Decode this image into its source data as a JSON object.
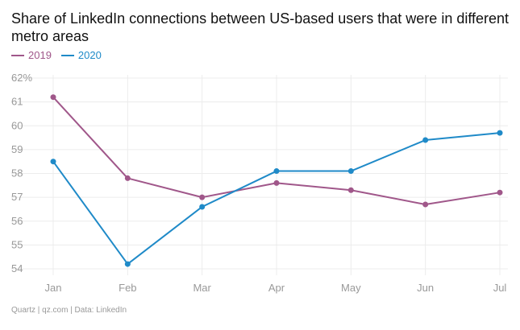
{
  "title": "Share of LinkedIn connections between US-based users that were in different metro areas",
  "footer": "Quartz | qz.com | Data: LinkedIn",
  "colors": {
    "2019": "#a0578a",
    "2020": "#1f8ac8"
  },
  "chart_data": {
    "type": "line",
    "title": "Share of LinkedIn connections between US-based users that were in different metro areas",
    "xlabel": "",
    "ylabel": "",
    "categories": [
      "Jan",
      "Feb",
      "Mar",
      "Apr",
      "May",
      "Jun",
      "Jul"
    ],
    "ylim": [
      54,
      62
    ],
    "yticks": [
      "62%",
      "61",
      "60",
      "59",
      "58",
      "57",
      "56",
      "55",
      "54"
    ],
    "grid": true,
    "legend_position": "top-left",
    "series": [
      {
        "name": "2019",
        "values": [
          61.2,
          57.8,
          57.0,
          57.6,
          57.3,
          56.7,
          57.2
        ]
      },
      {
        "name": "2020",
        "values": [
          58.5,
          54.2,
          56.6,
          58.1,
          58.1,
          59.4,
          59.7
        ]
      }
    ]
  }
}
